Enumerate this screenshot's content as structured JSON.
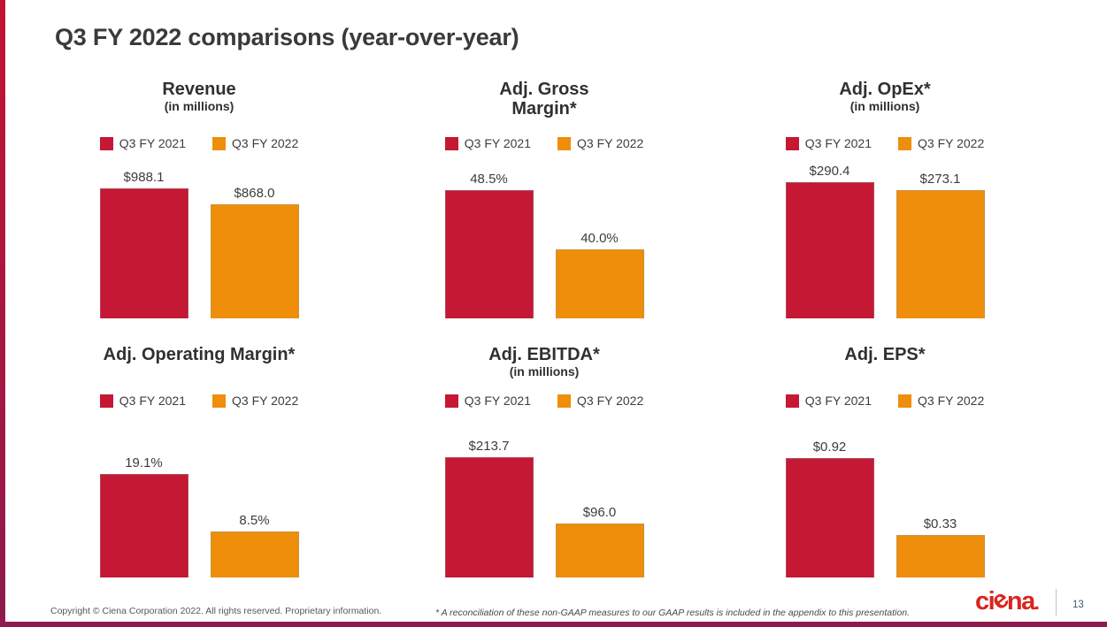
{
  "slide": {
    "title": "Q3 FY 2022 comparisons (year-over-year)",
    "page_number": "13"
  },
  "legend": {
    "fy2021": "Q3 FY 2021",
    "fy2022": "Q3 FY 2022"
  },
  "colors": {
    "fy2021_red": "#C41835",
    "fy2022_orange": "#EE8E0A",
    "accent_bar_top": "#C31432",
    "accent_bar_bottom": "#8E1A4E",
    "logo_red": "#D8261E",
    "title_text": "#3A3A3C",
    "page_number_text": "#44546A"
  },
  "footer": {
    "copyright": "Copyright © Ciena Corporation 2022. All rights reserved. Proprietary information.",
    "footnote": "* A reconciliation of these non-GAAP measures to our GAAP results is included in the appendix to this presentation.",
    "logo_text": "ciena."
  },
  "chart_data": [
    {
      "type": "bar",
      "title_lines": [
        "Revenue"
      ],
      "subtitle": "(in millions)",
      "categories": [
        "Q3 FY 2021",
        "Q3 FY 2022"
      ],
      "values": [
        988.1,
        868.0
      ],
      "labels": [
        "$988.1",
        "$868.0"
      ],
      "ylim": [
        0,
        1143
      ],
      "legend_position": "top",
      "grid": false
    },
    {
      "type": "bar",
      "title_lines": [
        "Adj. Gross",
        "Margin*"
      ],
      "subtitle": "",
      "categories": [
        "Q3 FY 2021",
        "Q3 FY 2022"
      ],
      "values": [
        48.5,
        40.0
      ],
      "labels": [
        "48.5%",
        "40.0%"
      ],
      "ylim": [
        30,
        51.7
      ],
      "legend_position": "top",
      "grid": false
    },
    {
      "type": "bar",
      "title_lines": [
        "Adj. OpEx*"
      ],
      "subtitle": "(in millions)",
      "categories": [
        "Q3 FY 2021",
        "Q3 FY 2022"
      ],
      "values": [
        290.4,
        273.1
      ],
      "labels": [
        "$290.4",
        "$273.1"
      ],
      "ylim": [
        0,
        320
      ],
      "legend_position": "top",
      "grid": false
    },
    {
      "type": "bar",
      "title_lines": [
        "Adj. Operating Margin*"
      ],
      "subtitle": "",
      "categories": [
        "Q3 FY 2021",
        "Q3 FY 2022"
      ],
      "values": [
        19.1,
        8.5
      ],
      "labels": [
        "19.1%",
        "8.5%"
      ],
      "ylim": [
        0,
        25.3
      ],
      "legend_position": "top",
      "grid": false
    },
    {
      "type": "bar",
      "title_lines": [
        "Adj. EBITDA*"
      ],
      "subtitle": "(in millions)",
      "categories": [
        "Q3 FY 2021",
        "Q3 FY 2022"
      ],
      "values": [
        213.7,
        96.0
      ],
      "labels": [
        "$213.7",
        "$96.0"
      ],
      "ylim": [
        0,
        244
      ],
      "legend_position": "top",
      "grid": false
    },
    {
      "type": "bar",
      "title_lines": [
        "Adj. EPS*"
      ],
      "subtitle": "",
      "categories": [
        "Q3 FY 2021",
        "Q3 FY 2022"
      ],
      "values": [
        0.92,
        0.33
      ],
      "labels": [
        "$0.92",
        "$0.33"
      ],
      "ylim": [
        0,
        1.06
      ],
      "legend_position": "top",
      "grid": false
    }
  ]
}
